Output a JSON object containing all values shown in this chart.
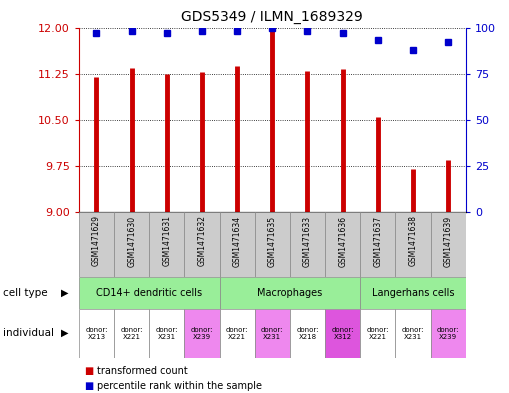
{
  "title": "GDS5349 / ILMN_1689329",
  "samples": [
    "GSM1471629",
    "GSM1471630",
    "GSM1471631",
    "GSM1471632",
    "GSM1471634",
    "GSM1471635",
    "GSM1471633",
    "GSM1471636",
    "GSM1471637",
    "GSM1471638",
    "GSM1471639"
  ],
  "transformed_count": [
    11.2,
    11.35,
    11.25,
    11.27,
    11.38,
    12.0,
    11.3,
    11.33,
    10.55,
    9.7,
    9.85
  ],
  "percentile_rank": [
    97,
    98,
    97,
    98,
    98,
    100,
    98,
    97,
    93,
    88,
    92
  ],
  "ylim_left": [
    9,
    12
  ],
  "ylim_right": [
    0,
    100
  ],
  "yticks_left": [
    9,
    9.75,
    10.5,
    11.25,
    12
  ],
  "yticks_right": [
    0,
    25,
    50,
    75,
    100
  ],
  "bar_color": "#cc0000",
  "dot_color": "#0000cc",
  "label_color_left": "#cc0000",
  "label_color_right": "#0000cc",
  "cell_groups": [
    {
      "label": "CD14+ dendritic cells",
      "start": 0,
      "end": 4,
      "color": "#99ee99"
    },
    {
      "label": "Macrophages",
      "start": 4,
      "end": 8,
      "color": "#99ee99"
    },
    {
      "label": "Langerhans cells",
      "start": 8,
      "end": 11,
      "color": "#99ee99"
    }
  ],
  "ind_labels": [
    "donor:\nX213",
    "donor:\nX221",
    "donor:\nX231",
    "donor:\nX239",
    "donor:\nX221",
    "donor:\nX231",
    "donor:\nX218",
    "donor:\nX312",
    "donor:\nX221",
    "donor:\nX231",
    "donor:\nX239"
  ],
  "ind_colors": [
    "#ffffff",
    "#ffffff",
    "#ffffff",
    "#ee88ee",
    "#ffffff",
    "#ee88ee",
    "#ffffff",
    "#dd55dd",
    "#ffffff",
    "#ffffff",
    "#ee88ee"
  ],
  "sample_bg_color": "#cccccc",
  "legend_items": [
    {
      "label": "transformed count",
      "color": "#cc0000"
    },
    {
      "label": "percentile rank within the sample",
      "color": "#0000cc"
    }
  ]
}
